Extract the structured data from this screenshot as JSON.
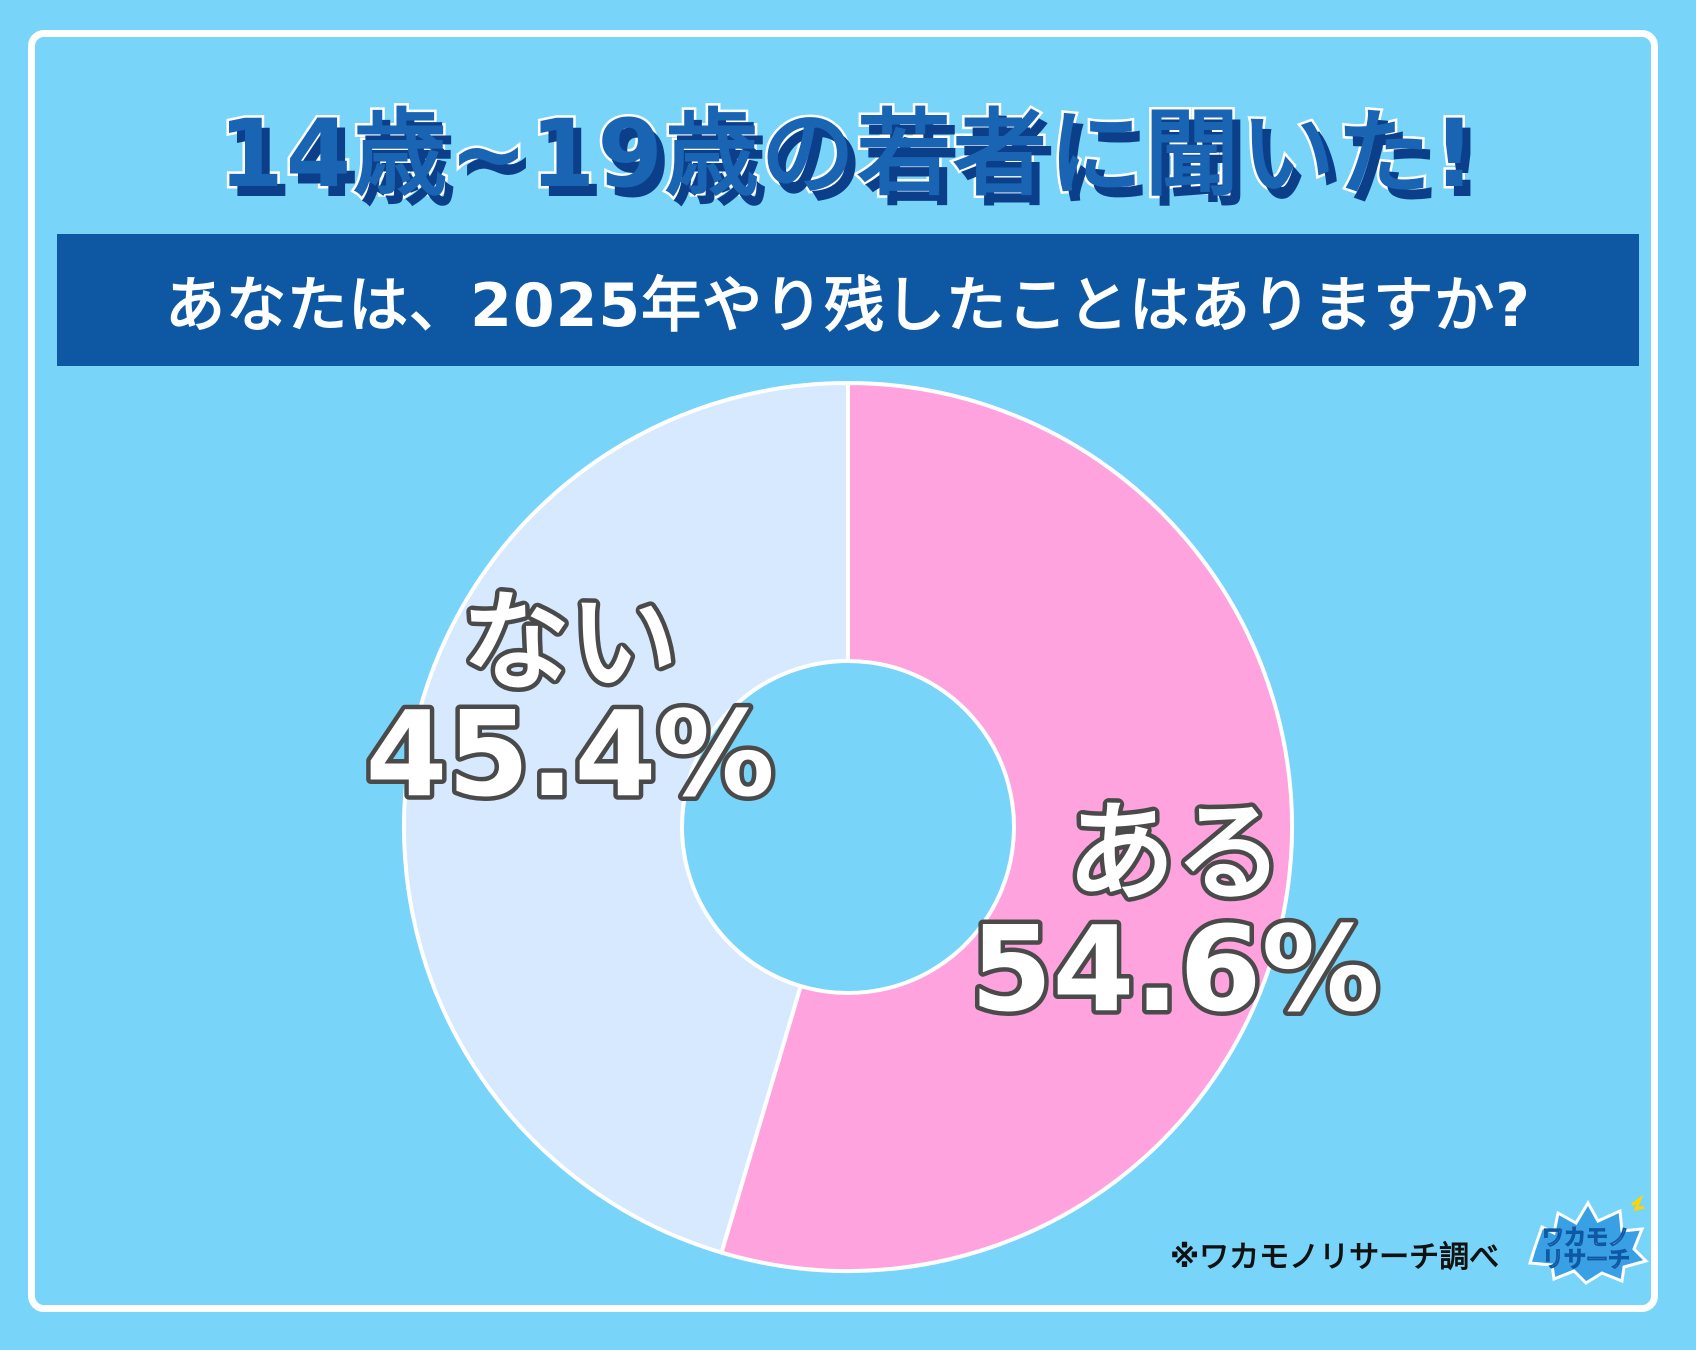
{
  "header": {
    "title": "14歳~19歳の若者に聞いた!",
    "question": "あなたは、2025年やり残したことはありますか?"
  },
  "chart_data": {
    "type": "pie",
    "title": "あなたは、2025年やり残したことはありますか?",
    "slices": [
      {
        "label": "ある",
        "value": 54.6,
        "display": "54.6%",
        "color": "#ffa3df"
      },
      {
        "label": "ない",
        "value": 45.4,
        "display": "45.4%",
        "color": "#d6e9ff"
      }
    ],
    "donut": true,
    "background_color": "#78d4f8"
  },
  "footer": {
    "source": "※ワカモノリサーチ調べ",
    "logo_text": [
      "ワカモノ",
      "リサーチ"
    ]
  }
}
